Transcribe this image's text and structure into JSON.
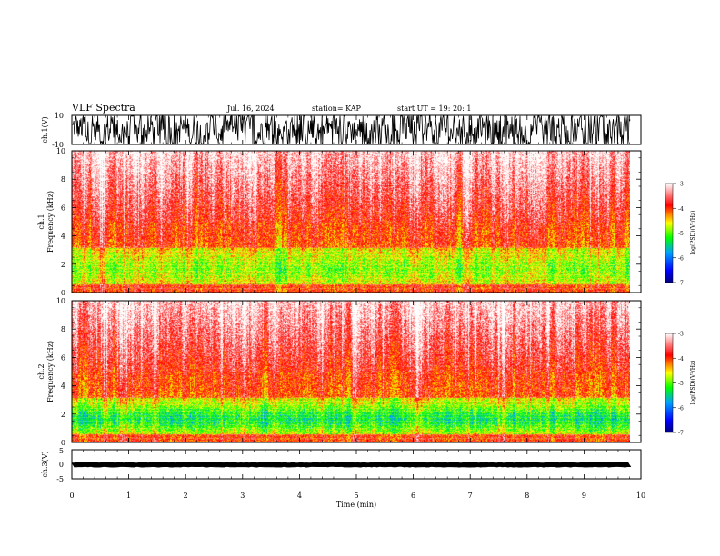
{
  "header": {
    "title": "VLF Spectra",
    "date": "Jul. 16, 2024",
    "station": "station= KAP",
    "start": "start UT =  19: 20: 1"
  },
  "chart_data": [
    {
      "type": "line",
      "name": "ch1-waveform",
      "ylabel": "ch.1(V)",
      "ylim": [
        -10,
        10
      ],
      "yticks": [
        "10",
        "-10"
      ],
      "xlim": [
        0,
        10
      ],
      "data_extent_min": [
        0,
        9.82
      ],
      "amplitude_envelope_V": [
        -10,
        10
      ],
      "description_of_trace": "dense black waveform"
    },
    {
      "type": "heatmap",
      "name": "ch1-spectrogram",
      "ylabel": "ch.1\nFrequency (kHz)",
      "ylabel_line1": "ch.1",
      "ylabel_line2": "Frequency (kHz)",
      "ylim": [
        0,
        10
      ],
      "yticks": [
        "0",
        "2",
        "4",
        "6",
        "8",
        "10"
      ],
      "xlim": [
        0,
        10
      ],
      "data_extent_min": [
        0,
        9.82
      ],
      "zlabel": "log(PSD)(V²/Hz)",
      "zlim": [
        -7,
        -3
      ],
      "zticks": [
        "-3",
        "-4",
        "-5",
        "-6",
        "-7"
      ],
      "colormap": [
        "#000080",
        "#0000ff",
        "#00a0ff",
        "#00ff00",
        "#ffff00",
        "#ff0000",
        "#ffffff"
      ],
      "lines_kHz": [
        0.35,
        0.55,
        0.8,
        1.05,
        1.3,
        1.55,
        1.8,
        2.0,
        2.25,
        2.45,
        2.7,
        2.95,
        3.2
      ]
    },
    {
      "type": "heatmap",
      "name": "ch2-spectrogram",
      "ylabel_line1": "ch.2",
      "ylabel_line2": "Frequency (kHz)",
      "ylim": [
        0,
        10
      ],
      "yticks": [
        "0",
        "2",
        "4",
        "6",
        "8",
        "10"
      ],
      "xlim": [
        0,
        10
      ],
      "data_extent_min": [
        0,
        9.82
      ],
      "zlabel": "log(PSD)(V²/Hz)",
      "zlim": [
        -7,
        -3
      ],
      "zticks": [
        "-3",
        "-4",
        "-5",
        "-6",
        "-7"
      ],
      "lines_kHz": [
        0.35,
        0.55,
        0.8,
        1.05,
        1.3,
        1.55,
        1.8,
        2.0,
        2.25,
        2.45,
        2.7,
        2.95,
        3.2
      ]
    },
    {
      "type": "line",
      "name": "ch3-waveform",
      "ylabel": "ch.3(V)",
      "ylim": [
        -5,
        5
      ],
      "yticks": [
        "5",
        "0",
        "-5"
      ],
      "xlim": [
        0,
        10
      ],
      "data_extent_min": [
        0,
        9.82
      ],
      "amplitude_envelope_V": [
        -0.6,
        0.6
      ]
    }
  ],
  "xaxis": {
    "label": "Time (min)",
    "ticks": [
      "0",
      "1",
      "2",
      "3",
      "4",
      "5",
      "6",
      "7",
      "8",
      "9",
      "10"
    ]
  },
  "colors": {
    "trace": "#000000",
    "frame": "#000000"
  }
}
